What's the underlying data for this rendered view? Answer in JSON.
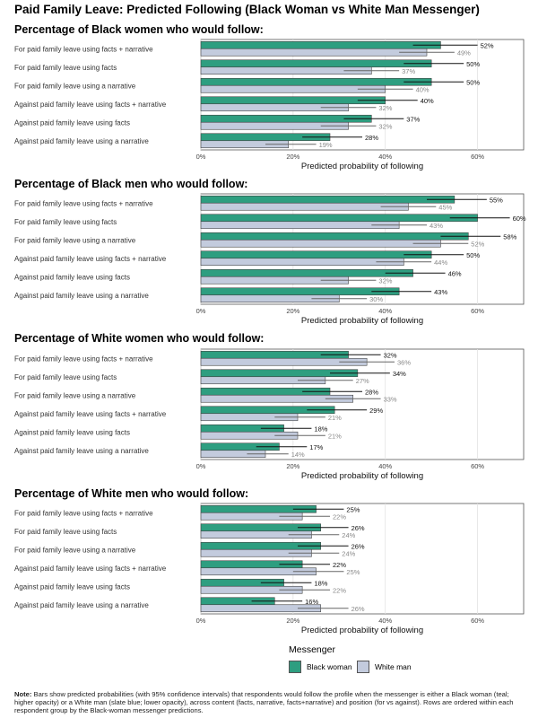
{
  "main_title": "Paid Family Leave: Predicted Following (Black Woman vs White Man Messenger)",
  "legend": {
    "title": "Messenger",
    "items": [
      {
        "label": "Black woman",
        "color": "#2e9e80"
      },
      {
        "label": "White man",
        "color": "#c3cbdd"
      }
    ]
  },
  "note": {
    "label": "Note:",
    "text": "Bars show predicted probabilities (with 95% confidence intervals) that respondents would follow the profile when the messenger is either a Black woman (teal; higher opacity) or a White man (slate blue; lower opacity), across content (facts, narrative, facts+narrative) and position (for vs against). Rows are ordered within each respondent group by the Black-woman messenger predictions."
  },
  "chart_data": [
    {
      "type": "bar",
      "orientation": "horizontal",
      "title": "Percentage of Black women who would follow:",
      "xlabel": "Predicted probability of following",
      "xlim": [
        0,
        0.7
      ],
      "xticks": [
        "0%",
        "20%",
        "40%",
        "60%"
      ],
      "categories": [
        "For paid family leave using facts + narrative",
        "For paid family leave using facts",
        "For paid family leave using a narrative",
        "Against paid family leave using facts + narrative",
        "Against paid family leave using facts",
        "Against paid family leave using a narrative"
      ],
      "series": [
        {
          "name": "Black woman",
          "values": [
            0.52,
            0.5,
            0.5,
            0.4,
            0.37,
            0.28
          ],
          "ci_low": [
            0.46,
            0.44,
            0.44,
            0.34,
            0.31,
            0.22
          ],
          "ci_high": [
            0.6,
            0.57,
            0.57,
            0.47,
            0.44,
            0.35
          ],
          "labels": [
            "52%",
            "50%",
            "50%",
            "40%",
            "37%",
            "28%"
          ]
        },
        {
          "name": "White man",
          "values": [
            0.49,
            0.37,
            0.4,
            0.32,
            0.32,
            0.19
          ],
          "ci_low": [
            0.43,
            0.31,
            0.34,
            0.26,
            0.26,
            0.14
          ],
          "ci_high": [
            0.55,
            0.43,
            0.46,
            0.38,
            0.38,
            0.25
          ],
          "labels": [
            "49%",
            "37%",
            "40%",
            "32%",
            "32%",
            "19%"
          ]
        }
      ]
    },
    {
      "type": "bar",
      "orientation": "horizontal",
      "title": "Percentage of Black men who would follow:",
      "xlabel": "Predicted probability of following",
      "xlim": [
        0,
        0.7
      ],
      "xticks": [
        "0%",
        "20%",
        "40%",
        "60%"
      ],
      "categories": [
        "For paid family leave using facts + narrative",
        "For paid family leave using facts",
        "For paid family leave using a narrative",
        "Against paid family leave using facts + narrative",
        "Against paid family leave using facts",
        "Against paid family leave using a narrative"
      ],
      "series": [
        {
          "name": "Black woman",
          "values": [
            0.55,
            0.6,
            0.58,
            0.5,
            0.46,
            0.43
          ],
          "ci_low": [
            0.49,
            0.54,
            0.52,
            0.44,
            0.4,
            0.37
          ],
          "ci_high": [
            0.62,
            0.67,
            0.65,
            0.57,
            0.53,
            0.5
          ],
          "labels": [
            "55%",
            "60%",
            "58%",
            "50%",
            "46%",
            "43%"
          ]
        },
        {
          "name": "White man",
          "values": [
            0.45,
            0.43,
            0.52,
            0.44,
            0.32,
            0.3
          ],
          "ci_low": [
            0.39,
            0.37,
            0.46,
            0.38,
            0.26,
            0.24
          ],
          "ci_high": [
            0.51,
            0.49,
            0.58,
            0.5,
            0.38,
            0.36
          ],
          "labels": [
            "45%",
            "43%",
            "52%",
            "44%",
            "32%",
            "30%"
          ]
        }
      ]
    },
    {
      "type": "bar",
      "orientation": "horizontal",
      "title": "Percentage of White women who would follow:",
      "xlabel": "Predicted probability of following",
      "xlim": [
        0,
        0.7
      ],
      "xticks": [
        "0%",
        "20%",
        "40%",
        "60%"
      ],
      "categories": [
        "For paid family leave using facts + narrative",
        "For paid family leave using facts",
        "For paid family leave using a narrative",
        "Against paid family leave using facts + narrative",
        "Against paid family leave using facts",
        "Against paid family leave using a narrative"
      ],
      "series": [
        {
          "name": "Black woman",
          "values": [
            0.32,
            0.34,
            0.28,
            0.29,
            0.18,
            0.17
          ],
          "ci_low": [
            0.26,
            0.28,
            0.22,
            0.23,
            0.13,
            0.12
          ],
          "ci_high": [
            0.39,
            0.41,
            0.35,
            0.36,
            0.24,
            0.23
          ],
          "labels": [
            "32%",
            "34%",
            "28%",
            "29%",
            "18%",
            "17%"
          ]
        },
        {
          "name": "White man",
          "values": [
            0.36,
            0.27,
            0.33,
            0.21,
            0.21,
            0.14
          ],
          "ci_low": [
            0.3,
            0.21,
            0.27,
            0.16,
            0.16,
            0.1
          ],
          "ci_high": [
            0.42,
            0.33,
            0.39,
            0.27,
            0.27,
            0.19
          ],
          "labels": [
            "36%",
            "27%",
            "33%",
            "21%",
            "21%",
            "14%"
          ]
        }
      ]
    },
    {
      "type": "bar",
      "orientation": "horizontal",
      "title": "Percentage of White men who would follow:",
      "xlabel": "Predicted probability of following",
      "xlim": [
        0,
        0.7
      ],
      "xticks": [
        "0%",
        "20%",
        "40%",
        "60%"
      ],
      "categories": [
        "For paid family leave using facts + narrative",
        "For paid family leave using facts",
        "For paid family leave using a narrative",
        "Against paid family leave using facts + narrative",
        "Against paid family leave using facts",
        "Against paid family leave using a narrative"
      ],
      "series": [
        {
          "name": "Black woman",
          "values": [
            0.25,
            0.26,
            0.26,
            0.22,
            0.18,
            0.16
          ],
          "ci_low": [
            0.2,
            0.21,
            0.21,
            0.17,
            0.13,
            0.11
          ],
          "ci_high": [
            0.31,
            0.32,
            0.32,
            0.28,
            0.24,
            0.22
          ],
          "labels": [
            "25%",
            "26%",
            "26%",
            "22%",
            "18%",
            "16%"
          ]
        },
        {
          "name": "White man",
          "values": [
            0.22,
            0.24,
            0.24,
            0.25,
            0.22,
            0.26
          ],
          "ci_low": [
            0.17,
            0.19,
            0.19,
            0.2,
            0.17,
            0.21
          ],
          "ci_high": [
            0.28,
            0.3,
            0.3,
            0.31,
            0.28,
            0.32
          ],
          "labels": [
            "22%",
            "24%",
            "24%",
            "25%",
            "22%",
            "26%"
          ]
        }
      ]
    }
  ]
}
